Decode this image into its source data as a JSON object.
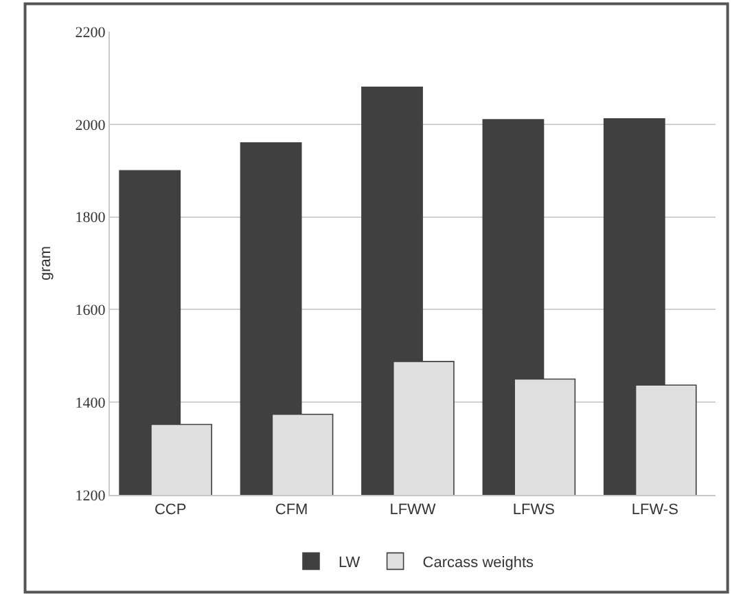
{
  "chart_data": {
    "type": "bar",
    "ylabel": "gram",
    "categories": [
      "CCP",
      "CFM",
      "LFWW",
      "LFWS",
      "LFW-S"
    ],
    "series": [
      {
        "name": "LW",
        "color": "#404040",
        "values": [
          1900,
          1960,
          2080,
          2010,
          2012
        ]
      },
      {
        "name": "Carcass weights",
        "color": "#e0e0e0",
        "values": [
          1352,
          1374,
          1488,
          1450,
          1437
        ]
      }
    ],
    "ylim": [
      1200,
      2200
    ],
    "yticks": [
      1200,
      1400,
      1600,
      1800,
      2000,
      2200
    ],
    "grid": "y",
    "legend": "bottom"
  }
}
